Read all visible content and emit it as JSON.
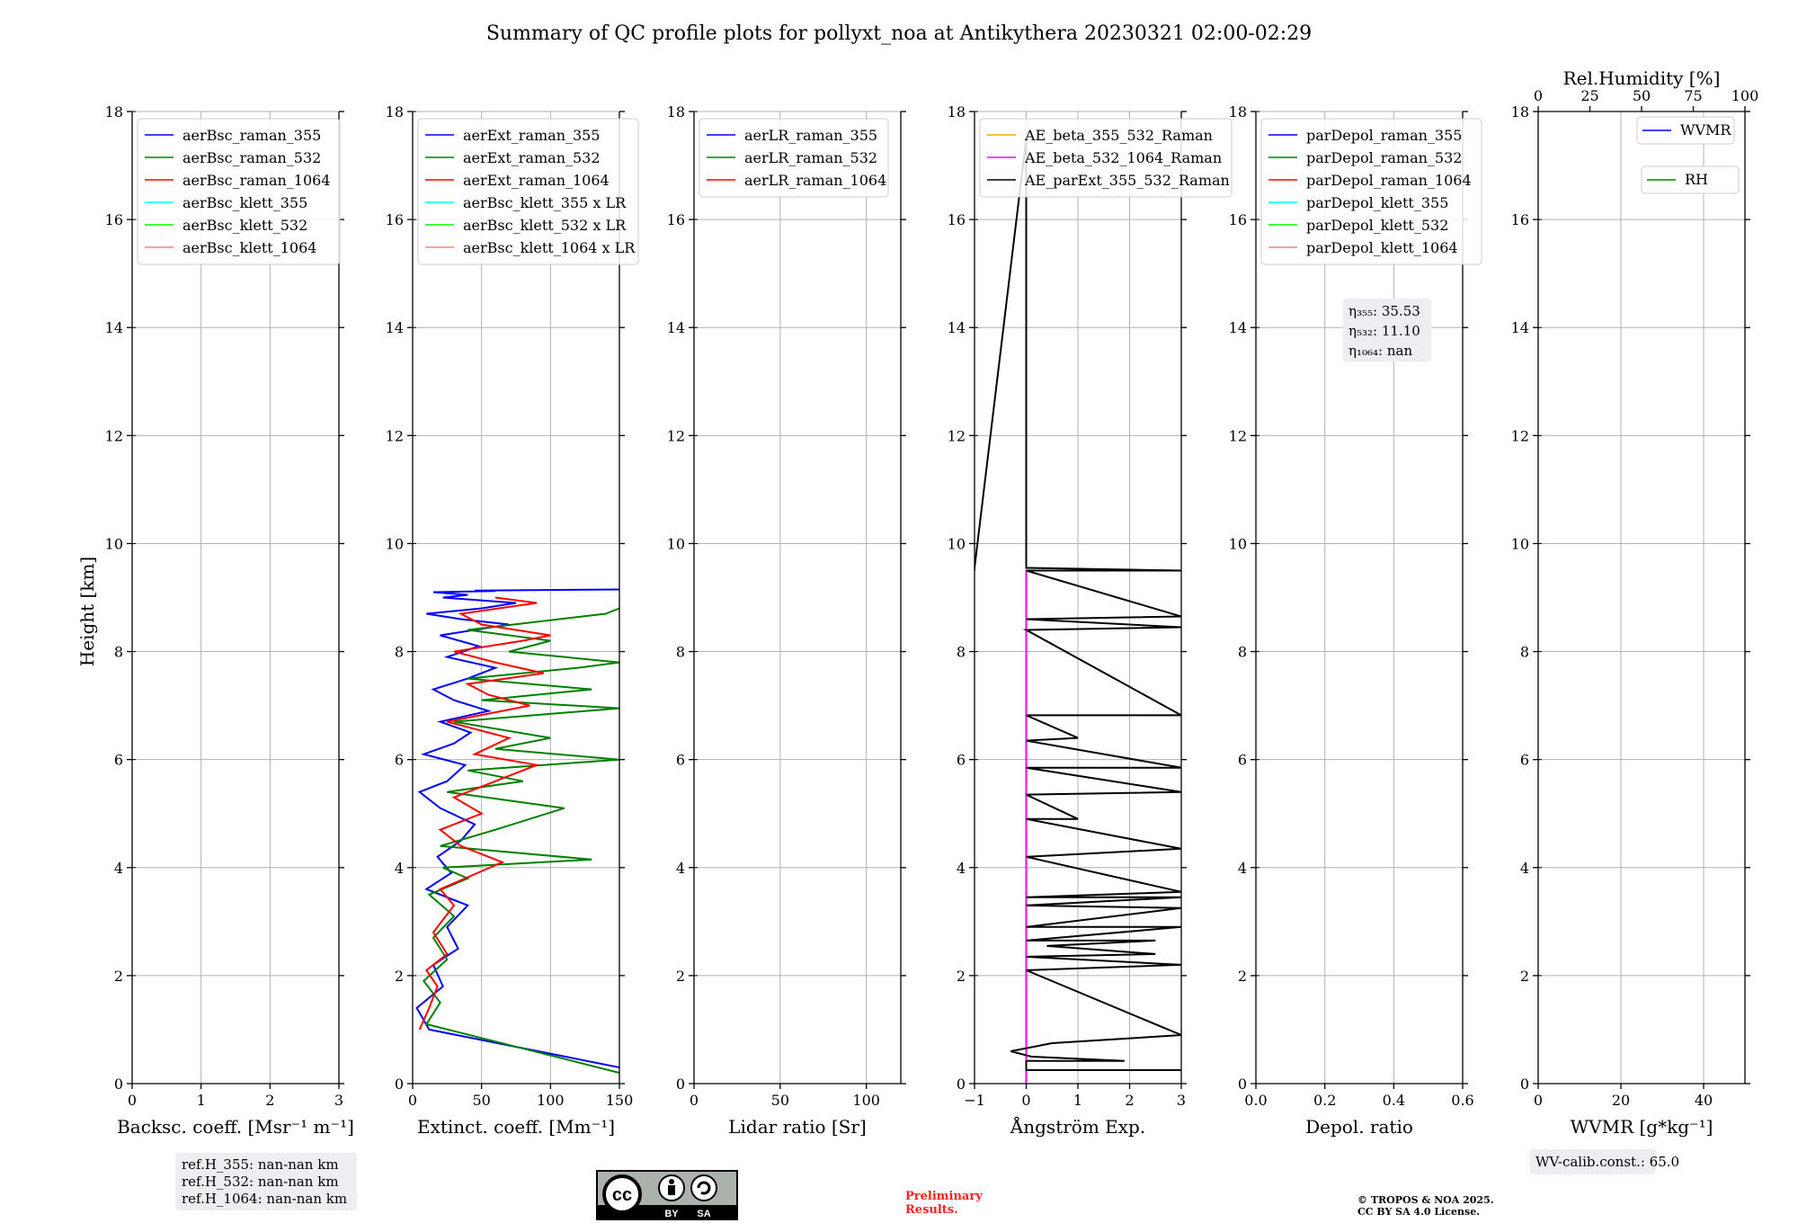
{
  "title": "Summary of QC profile plots for pollyxt_noa at Antikythera 20230321 02:00-02:29",
  "ylabel": "Height [km]",
  "chart_data": [
    {
      "type": "line",
      "xlabel": "Backsc. coeff. [Msr⁻¹ m⁻¹]",
      "xlim": [
        0,
        3
      ],
      "xticks": [
        "0",
        "1",
        "2",
        "3"
      ],
      "ylim": [
        0,
        18
      ],
      "yticks": [
        "0",
        "2",
        "4",
        "6",
        "8",
        "10",
        "12",
        "14",
        "16",
        "18"
      ],
      "grid": true,
      "legend_placement": "top-left",
      "series": [
        {
          "name": "aerBsc_raman_355",
          "color": "#0000ff",
          "x": [],
          "y": []
        },
        {
          "name": "aerBsc_raman_532",
          "color": "#008000",
          "x": [],
          "y": []
        },
        {
          "name": "aerBsc_raman_1064",
          "color": "#ff0000",
          "x": [],
          "y": []
        },
        {
          "name": "aerBsc_klett_355",
          "color": "#00ffff",
          "x": [],
          "y": []
        },
        {
          "name": "aerBsc_klett_532",
          "color": "#00ff00",
          "x": [],
          "y": []
        },
        {
          "name": "aerBsc_klett_1064",
          "color": "#ff8080",
          "x": [],
          "y": []
        }
      ]
    },
    {
      "type": "line",
      "xlabel": "Extinct. coeff. [Mm⁻¹]",
      "xlim": [
        0,
        150
      ],
      "xticks": [
        "0",
        "50",
        "100",
        "150"
      ],
      "ylim": [
        0,
        18
      ],
      "yticks": [
        "0",
        "2",
        "4",
        "6",
        "8",
        "10",
        "12",
        "14",
        "16",
        "18"
      ],
      "grid": true,
      "legend_placement": "top-left",
      "series": [
        {
          "name": "aerExt_raman_355",
          "color": "#0000ff",
          "x": [
            150,
            12,
            3,
            22,
            15,
            33,
            25,
            40,
            10,
            28,
            18,
            35,
            45,
            20,
            5,
            25,
            38,
            8,
            30,
            42,
            20,
            55,
            30,
            15,
            40,
            60,
            25,
            48,
            20,
            70,
            35,
            10,
            50,
            75,
            22,
            40,
            15,
            60,
            45,
            150
          ],
          "y": [
            0.3,
            1.0,
            1.4,
            1.8,
            2.2,
            2.5,
            2.9,
            3.3,
            3.6,
            3.9,
            4.2,
            4.5,
            4.8,
            5.1,
            5.4,
            5.6,
            5.9,
            6.1,
            6.3,
            6.5,
            6.7,
            6.9,
            7.1,
            7.3,
            7.5,
            7.7,
            7.9,
            8.1,
            8.3,
            8.5,
            8.6,
            8.7,
            8.8,
            8.9,
            9.0,
            9.05,
            9.1,
            9.12,
            9.13,
            9.15
          ]
        },
        {
          "name": "aerExt_raman_532",
          "color": "#008000",
          "x": [
            150,
            10,
            20,
            8,
            25,
            15,
            30,
            12,
            40,
            22,
            130,
            20,
            60,
            110,
            25,
            80,
            40,
            150,
            60,
            100,
            30,
            150,
            50,
            130,
            40,
            120,
            150,
            70,
            100,
            40,
            140,
            150
          ],
          "y": [
            0.2,
            1.1,
            1.5,
            1.9,
            2.3,
            2.7,
            3.1,
            3.5,
            3.8,
            4.0,
            4.15,
            4.4,
            4.7,
            5.1,
            5.4,
            5.6,
            5.8,
            6.0,
            6.2,
            6.4,
            6.7,
            6.95,
            7.1,
            7.3,
            7.5,
            7.7,
            7.8,
            8.0,
            8.2,
            8.4,
            8.7,
            8.8
          ]
        },
        {
          "name": "aerExt_raman_1064",
          "color": "#ff0000",
          "x": [
            5,
            12,
            18,
            10,
            25,
            15,
            30,
            20,
            65,
            35,
            20,
            50,
            30,
            90,
            45,
            70,
            25,
            85,
            55,
            40,
            95,
            60,
            30,
            80,
            100,
            50,
            35,
            90,
            60
          ],
          "y": [
            1.0,
            1.4,
            1.8,
            2.1,
            2.4,
            2.8,
            3.3,
            3.6,
            4.1,
            4.4,
            4.7,
            5.0,
            5.3,
            5.9,
            6.1,
            6.4,
            6.7,
            7.0,
            7.2,
            7.4,
            7.6,
            7.8,
            8.0,
            8.2,
            8.3,
            8.5,
            8.7,
            8.9,
            9.0
          ]
        },
        {
          "name": "aerBsc_klett_355 x LR",
          "color": "#00ffff",
          "x": [],
          "y": []
        },
        {
          "name": "aerBsc_klett_532 x LR",
          "color": "#00ff00",
          "x": [],
          "y": []
        },
        {
          "name": "aerBsc_klett_1064 x LR",
          "color": "#ff8080",
          "x": [],
          "y": []
        }
      ]
    },
    {
      "type": "line",
      "xlabel": "Lidar ratio [Sr]",
      "xlim": [
        0,
        120
      ],
      "xticks": [
        "0",
        "50",
        "100"
      ],
      "ylim": [
        0,
        18
      ],
      "yticks": [
        "0",
        "2",
        "4",
        "6",
        "8",
        "10",
        "12",
        "14",
        "16",
        "18"
      ],
      "grid": true,
      "legend_placement": "top-left",
      "series": [
        {
          "name": "aerLR_raman_355",
          "color": "#0000ff",
          "x": [],
          "y": []
        },
        {
          "name": "aerLR_raman_532",
          "color": "#008000",
          "x": [],
          "y": []
        },
        {
          "name": "aerLR_raman_1064",
          "color": "#ff0000",
          "x": [],
          "y": []
        }
      ]
    },
    {
      "type": "line",
      "xlabel": "Ångström Exp.",
      "xlim": [
        -1,
        3
      ],
      "xticks": [
        "−1",
        "0",
        "1",
        "2",
        "3"
      ],
      "ylim": [
        0,
        18
      ],
      "yticks": [
        "0",
        "2",
        "4",
        "6",
        "8",
        "10",
        "12",
        "14",
        "16",
        "18"
      ],
      "grid": true,
      "legend_placement": "top-left",
      "series": [
        {
          "name": "AE_beta_355_532_Raman",
          "color": "#ffa500",
          "x": [],
          "y": []
        },
        {
          "name": "AE_beta_532_1064_Raman",
          "color": "#ff00ff",
          "x": [
            0,
            0
          ],
          "y": [
            0,
            9.5
          ]
        },
        {
          "name": "AE_parExt_355_532_Raman",
          "color": "#000000",
          "x": [
            3,
            0,
            0,
            1.9,
            0.1,
            -0.3,
            0.5,
            3,
            0,
            3,
            0,
            2.5,
            0.4,
            2.5,
            0,
            3,
            0,
            3,
            0,
            3,
            0,
            3,
            0,
            3,
            0,
            1,
            0,
            3,
            0,
            3,
            0,
            1,
            0,
            3,
            0,
            3,
            0,
            3,
            0,
            3,
            0,
            0,
            -1,
            -1
          ],
          "y": [
            0.25,
            0.25,
            0.42,
            0.42,
            0.5,
            0.6,
            0.75,
            0.9,
            2.1,
            2.2,
            2.35,
            2.4,
            2.55,
            2.65,
            2.65,
            2.9,
            2.9,
            3.25,
            3.3,
            3.45,
            3.45,
            3.55,
            4.2,
            4.35,
            4.9,
            4.9,
            5.35,
            5.4,
            5.85,
            5.85,
            6.35,
            6.4,
            6.82,
            6.82,
            8.4,
            8.45,
            8.6,
            8.65,
            9.5,
            9.5,
            9.55,
            17.5,
            9.55,
            9.5
          ]
        }
      ]
    },
    {
      "type": "line",
      "xlabel": "Depol. ratio",
      "xlim": [
        0,
        0.6
      ],
      "xticks": [
        "0.0",
        "0.2",
        "0.4",
        "0.6"
      ],
      "ylim": [
        0,
        18
      ],
      "yticks": [
        "0",
        "2",
        "4",
        "6",
        "8",
        "10",
        "12",
        "14",
        "16",
        "18"
      ],
      "grid": true,
      "legend_placement": "top-left",
      "series": [
        {
          "name": "parDepol_raman_355",
          "color": "#0000ff",
          "x": [],
          "y": []
        },
        {
          "name": "parDepol_raman_532",
          "color": "#008000",
          "x": [],
          "y": []
        },
        {
          "name": "parDepol_raman_1064",
          "color": "#ff0000",
          "x": [],
          "y": []
        },
        {
          "name": "parDepol_klett_355",
          "color": "#00ffff",
          "x": [],
          "y": []
        },
        {
          "name": "parDepol_klett_532",
          "color": "#00ff00",
          "x": [],
          "y": []
        },
        {
          "name": "parDepol_klett_1064",
          "color": "#ff8080",
          "x": [],
          "y": []
        }
      ]
    },
    {
      "type": "line",
      "xlabel": "WVMR [g*kg⁻¹]",
      "xlim": [
        0,
        50
      ],
      "xticks": [
        "0",
        "20",
        "40"
      ],
      "x2label": "Rel.Humidity [%]",
      "x2lim": [
        0,
        100
      ],
      "x2ticks": [
        "0",
        "25",
        "50",
        "75",
        "100"
      ],
      "ylim": [
        0,
        18
      ],
      "yticks": [
        "0",
        "2",
        "4",
        "6",
        "8",
        "10",
        "12",
        "14",
        "16",
        "18"
      ],
      "grid": true,
      "legend_placement": "top-right",
      "series": [
        {
          "name": "WVMR",
          "color": "#0000ff",
          "x": [],
          "y": []
        },
        {
          "name": "RH",
          "color": "#008000",
          "x": [],
          "y": []
        }
      ]
    }
  ],
  "annotations": {
    "refh": [
      "ref.H_355: nan-nan km",
      "ref.H_532: nan-nan km",
      "ref.H_1064: nan-nan km"
    ],
    "eta": [
      "η₃₅₅: 35.53",
      "η₅₃₂: 11.10",
      "η₁₀₆₄: nan"
    ],
    "wv_calib": "WV-calib.const.: 65.0",
    "preliminary": [
      "Preliminary",
      "Results."
    ],
    "copyright": [
      "© TROPOS & NOA 2025.",
      "CC BY SA 4.0 License."
    ],
    "license_badge": {
      "cc": "cc",
      "by": "BY",
      "sa": "SA"
    }
  }
}
